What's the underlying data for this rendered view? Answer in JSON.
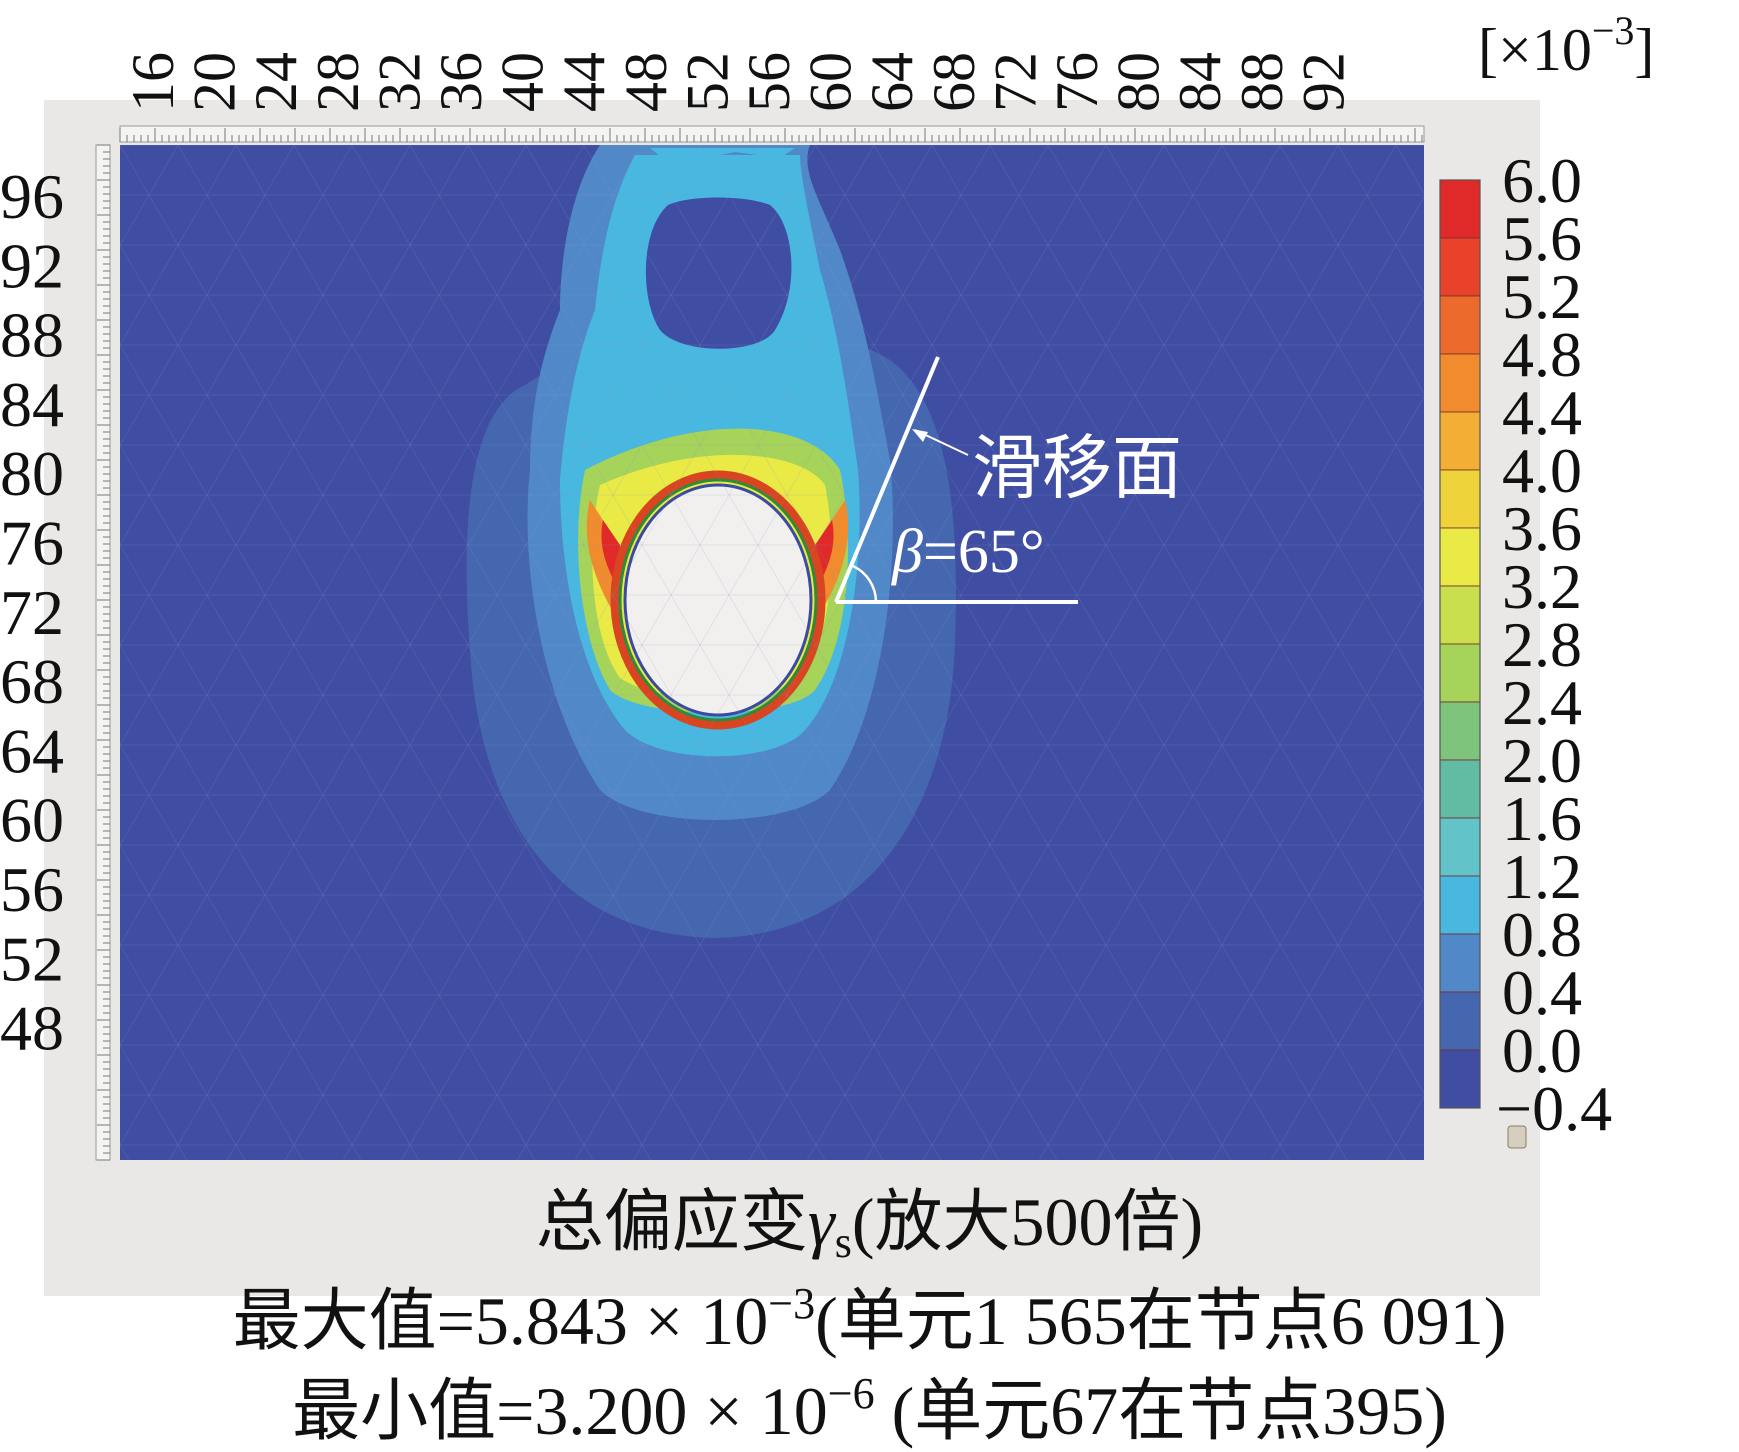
{
  "chart_data": {
    "type": "heatmap",
    "x_ticks": [
      "16",
      "20",
      "24",
      "28",
      "32",
      "36",
      "40",
      "44",
      "48",
      "52",
      "56",
      "60",
      "64",
      "68",
      "72",
      "76",
      "80",
      "84",
      "88",
      "92"
    ],
    "y_ticks": [
      "96",
      "92",
      "88",
      "84",
      "80",
      "76",
      "72",
      "68",
      "64",
      "60",
      "56",
      "52",
      "48"
    ],
    "scale_unit": "[×10",
    "scale_unit_exp": "−3",
    "scale_unit_close": "]",
    "colorbar": {
      "labels": [
        "6.0",
        "5.6",
        "5.2",
        "4.8",
        "4.4",
        "4.0",
        "3.6",
        "3.2",
        "2.8",
        "2.4",
        "2.0",
        "1.6",
        "1.2",
        "0.8",
        "0.4",
        "0.0",
        "−0.4"
      ],
      "colors": [
        "#e02a2a",
        "#e8432a",
        "#ec6a2b",
        "#f08c2e",
        "#f3ae35",
        "#eed43a",
        "#e9ea46",
        "#c9df4e",
        "#a6d35a",
        "#7fc47c",
        "#62bca4",
        "#62c4c8",
        "#48b8e0",
        "#5189c8",
        "#4567b0",
        "#3f4ea3"
      ]
    },
    "contours": [
      {
        "level": 0.2,
        "color": "#4567b0"
      },
      {
        "level": 0.8,
        "color": "#5189c8"
      },
      {
        "level": 1.4,
        "color": "#48b8e0"
      },
      {
        "level": 2.8,
        "color": "#a6d35a"
      },
      {
        "level": 3.6,
        "color": "#e9ea46"
      },
      {
        "level": 4.8,
        "color": "#f08c2e"
      },
      {
        "level": 5.6,
        "color": "#e02a2a"
      }
    ],
    "background_color": "#3f4ea3",
    "tunnel_color": "#f2f0ee",
    "annotation": {
      "slip_label": "滑移面",
      "beta_symbol": "β",
      "beta_value": "=65°",
      "angle_deg": 65
    }
  },
  "caption": {
    "line1_prefix": "总偏应变",
    "line1_symbol": "γ",
    "line1_sub": "s",
    "line1_suffix": "(放大500倍)",
    "line2_prefix": "最大值=5.843 × 10",
    "line2_exp": "−3",
    "line2_suffix": "(单元1 565在节点6 091)",
    "line3_prefix": "最小值=3.200 × 10",
    "line3_exp": "−6",
    "line3_suffix": " (单元67在节点395)"
  }
}
